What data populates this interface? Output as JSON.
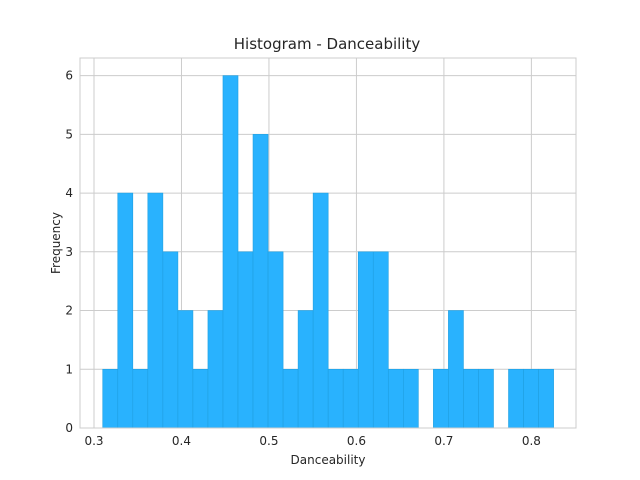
{
  "chart_data": {
    "type": "bar",
    "title": "Histogram - Danceability",
    "xlabel": "Danceability",
    "ylabel": "Frequency",
    "xlim": [
      0.284,
      0.851
    ],
    "ylim": [
      0,
      6.3
    ],
    "xticks": [
      "0.3",
      "0.4",
      "0.5",
      "0.6",
      "0.7",
      "0.8"
    ],
    "xtick_values": [
      0.3,
      0.4,
      0.5,
      0.6,
      0.7,
      0.8
    ],
    "yticks": [
      "0",
      "1",
      "2",
      "3",
      "4",
      "5",
      "6"
    ],
    "ytick_values": [
      0,
      1,
      2,
      3,
      4,
      5,
      6
    ],
    "grid": true,
    "bar_color": "#29b2fe",
    "bar_edge_color": "#1f9fe0",
    "bin_start": 0.31,
    "bin_width": 0.01718,
    "counts": [
      1,
      4,
      1,
      4,
      3,
      2,
      1,
      2,
      6,
      3,
      5,
      3,
      1,
      2,
      4,
      1,
      1,
      3,
      3,
      1,
      1,
      0,
      1,
      2,
      1,
      1,
      0,
      1,
      1,
      1
    ]
  }
}
